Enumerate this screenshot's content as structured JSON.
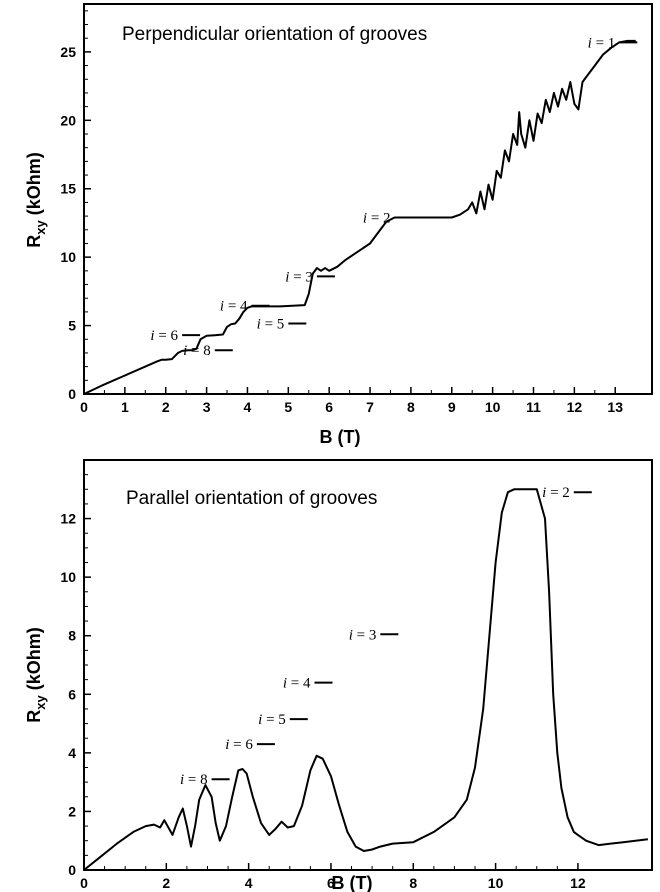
{
  "chart_data": [
    {
      "type": "line",
      "title": "Perpendicular orientation of grooves",
      "xlabel": "B (T)",
      "ylabel_main": "R",
      "ylabel_sub": "xy",
      "ylabel_unit": " (kOhm)",
      "xlim": [
        0,
        13.9
      ],
      "ylim": [
        0,
        28.5
      ],
      "xticks": [
        "0",
        "1",
        "2",
        "3",
        "4",
        "5",
        "6",
        "7",
        "8",
        "9",
        "10",
        "11",
        "12",
        "13"
      ],
      "yticks": [
        "0",
        "5",
        "10",
        "15",
        "20",
        "25"
      ],
      "series": [
        {
          "x": [
            0,
            0.5,
            1.0,
            1.5,
            1.8,
            1.9,
            2.0,
            2.15,
            2.3,
            2.4,
            2.55,
            2.65,
            2.75,
            2.85,
            3.0,
            3.2,
            3.4,
            3.5,
            3.6,
            3.7,
            3.8,
            3.9,
            4.0,
            4.1,
            4.2,
            4.35,
            4.5,
            4.8,
            5.1,
            5.4,
            5.5,
            5.6,
            5.7,
            5.8,
            5.9,
            6.0,
            6.2,
            6.4,
            6.6,
            6.8,
            7.0,
            7.2,
            7.4,
            7.6,
            8.0,
            8.5,
            9.0,
            9.2,
            9.4,
            9.5,
            9.6,
            9.7,
            9.8,
            9.9,
            10.0,
            10.1,
            10.2,
            10.3,
            10.4,
            10.5,
            10.6,
            10.65,
            10.7,
            10.8,
            10.9,
            11.0,
            11.1,
            11.2,
            11.3,
            11.4,
            11.5,
            11.6,
            11.7,
            11.8,
            11.9,
            12.0,
            12.1,
            12.2,
            12.3,
            12.5,
            12.7,
            12.9,
            13.1,
            13.3,
            13.5
          ],
          "y": [
            0,
            0.7,
            1.35,
            2.0,
            2.4,
            2.5,
            2.5,
            2.55,
            3.0,
            3.15,
            3.2,
            3.2,
            3.3,
            4.0,
            4.25,
            4.3,
            4.35,
            4.9,
            5.1,
            5.15,
            5.5,
            6.0,
            6.3,
            6.4,
            6.4,
            6.4,
            6.4,
            6.4,
            6.45,
            6.5,
            7.3,
            8.8,
            9.2,
            9.0,
            9.2,
            9.0,
            9.3,
            9.8,
            10.2,
            10.6,
            11.0,
            11.8,
            12.6,
            12.9,
            12.9,
            12.9,
            12.9,
            13.1,
            13.5,
            14.0,
            13.2,
            14.8,
            13.5,
            15.3,
            14.2,
            16.3,
            15.8,
            17.8,
            17.0,
            19.0,
            18.2,
            20.6,
            19.0,
            18.0,
            20.0,
            18.5,
            20.5,
            19.8,
            21.5,
            20.6,
            22.0,
            21.0,
            22.3,
            21.5,
            22.8,
            21.2,
            20.8,
            22.8,
            23.2,
            24.0,
            24.8,
            25.3,
            25.7,
            25.8,
            25.8
          ]
        }
      ],
      "annotations": [
        {
          "label": "i = 1",
          "x": 13.1,
          "y": 25.7
        },
        {
          "label": "i = 2",
          "x": 7.6,
          "y": 12.9
        },
        {
          "label": "i = 3",
          "x": 5.7,
          "y": 8.6
        },
        {
          "label": "i = 4",
          "x": 4.1,
          "y": 6.45
        },
        {
          "label": "i = 5",
          "x": 5.0,
          "y": 5.15
        },
        {
          "label": "i = 6",
          "x": 2.4,
          "y": 4.3
        },
        {
          "label": "i = 8",
          "x": 3.2,
          "y": 3.2
        }
      ]
    },
    {
      "type": "line",
      "title": "Parallel orientation of grooves",
      "xlabel": "B (T)",
      "ylabel_main": "R",
      "ylabel_sub": "xy",
      "ylabel_unit": " (kOhm)",
      "xlim": [
        0,
        13.8
      ],
      "ylim": [
        0,
        14.0
      ],
      "xticks": [
        "0",
        "2",
        "4",
        "6",
        "8",
        "10",
        "12"
      ],
      "yticks": [
        "0",
        "2",
        "4",
        "6",
        "8",
        "10",
        "12"
      ],
      "series": [
        {
          "x": [
            0,
            0.4,
            0.8,
            1.2,
            1.5,
            1.7,
            1.85,
            1.95,
            2.05,
            2.15,
            2.3,
            2.4,
            2.5,
            2.6,
            2.7,
            2.8,
            2.95,
            3.1,
            3.2,
            3.3,
            3.45,
            3.6,
            3.75,
            3.85,
            3.95,
            4.1,
            4.3,
            4.5,
            4.65,
            4.8,
            4.95,
            5.1,
            5.3,
            5.5,
            5.65,
            5.8,
            6.0,
            6.2,
            6.4,
            6.6,
            6.8,
            7.0,
            7.2,
            7.5,
            8.0,
            8.5,
            9.0,
            9.3,
            9.5,
            9.7,
            9.85,
            10.0,
            10.15,
            10.3,
            10.45,
            10.6,
            11.0,
            11.2,
            11.3,
            11.4,
            11.5,
            11.6,
            11.75,
            11.9,
            12.0,
            12.2,
            12.5,
            12.8,
            13.1,
            13.4,
            13.7
          ],
          "y": [
            0,
            0.45,
            0.9,
            1.3,
            1.5,
            1.55,
            1.45,
            1.7,
            1.45,
            1.2,
            1.8,
            2.1,
            1.5,
            0.8,
            1.5,
            2.4,
            2.9,
            2.5,
            1.6,
            1.0,
            1.5,
            2.5,
            3.4,
            3.45,
            3.3,
            2.5,
            1.6,
            1.2,
            1.4,
            1.65,
            1.45,
            1.5,
            2.2,
            3.4,
            3.9,
            3.8,
            3.2,
            2.2,
            1.3,
            0.8,
            0.65,
            0.7,
            0.8,
            0.9,
            0.95,
            1.3,
            1.8,
            2.4,
            3.5,
            5.5,
            8.0,
            10.5,
            12.2,
            12.9,
            13.0,
            13.0,
            13.0,
            12.0,
            9.5,
            6.0,
            4.0,
            2.8,
            1.8,
            1.3,
            1.2,
            1.0,
            0.85,
            0.9,
            0.95,
            1.0,
            1.05
          ]
        }
      ],
      "annotations": [
        {
          "label": "i = 2",
          "x": 11.9,
          "y": 12.9
        },
        {
          "label": "i = 3",
          "x": 7.2,
          "y": 8.05
        },
        {
          "label": "i = 4",
          "x": 5.6,
          "y": 6.4
        },
        {
          "label": "i = 5",
          "x": 5.0,
          "y": 5.15
        },
        {
          "label": "i = 6",
          "x": 4.2,
          "y": 4.3
        },
        {
          "label": "i = 8",
          "x": 3.1,
          "y": 3.1
        }
      ]
    }
  ]
}
